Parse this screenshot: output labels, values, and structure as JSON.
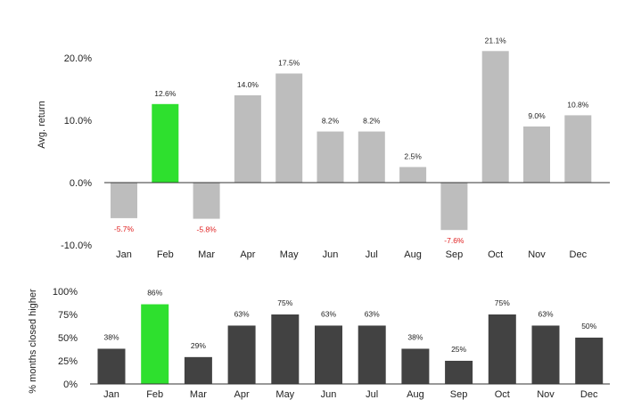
{
  "colors": {
    "highlight": "#2ee02e",
    "top_bar": "#bdbdbd",
    "bottom_bar": "#424242",
    "negative_label": "#e02020",
    "axis": "#333333"
  },
  "chart_data": [
    {
      "type": "bar",
      "title": "",
      "xlabel": "",
      "ylabel": "Avg. return",
      "categories": [
        "Jan",
        "Feb",
        "Mar",
        "Apr",
        "May",
        "Jun",
        "Jul",
        "Aug",
        "Sep",
        "Oct",
        "Nov",
        "Dec"
      ],
      "values": [
        -5.7,
        12.6,
        -5.8,
        14.0,
        17.5,
        8.2,
        8.2,
        2.5,
        -7.6,
        21.1,
        9.0,
        10.8
      ],
      "data_labels": [
        "-5.7%",
        "12.6%",
        "-5.8%",
        "14.0%",
        "17.5%",
        "8.2%",
        "8.2%",
        "2.5%",
        "-7.6%",
        "21.1%",
        "9.0%",
        "10.8%"
      ],
      "yticks": [
        20,
        10,
        0,
        -10
      ],
      "ytick_labels": [
        "20.0%",
        "10.0%",
        "0.0%",
        "-10.0%"
      ],
      "ylim": [
        -10,
        25
      ],
      "highlight": "Feb",
      "grid": false
    },
    {
      "type": "bar",
      "title": "",
      "xlabel": "",
      "ylabel": "% months closed higher",
      "categories": [
        "Jan",
        "Feb",
        "Mar",
        "Apr",
        "May",
        "Jun",
        "Jul",
        "Aug",
        "Sep",
        "Oct",
        "Nov",
        "Dec"
      ],
      "values": [
        38,
        86,
        29,
        63,
        75,
        63,
        63,
        38,
        25,
        75,
        63,
        50
      ],
      "data_labels": [
        "38%",
        "86%",
        "29%",
        "63%",
        "75%",
        "63%",
        "63%",
        "38%",
        "25%",
        "75%",
        "63%",
        "50%"
      ],
      "yticks": [
        100,
        75,
        50,
        25,
        0
      ],
      "ytick_labels": [
        "100%",
        "75%",
        "50%",
        "25%",
        "0%"
      ],
      "ylim": [
        0,
        100
      ],
      "highlight": "Feb",
      "grid": false
    }
  ]
}
